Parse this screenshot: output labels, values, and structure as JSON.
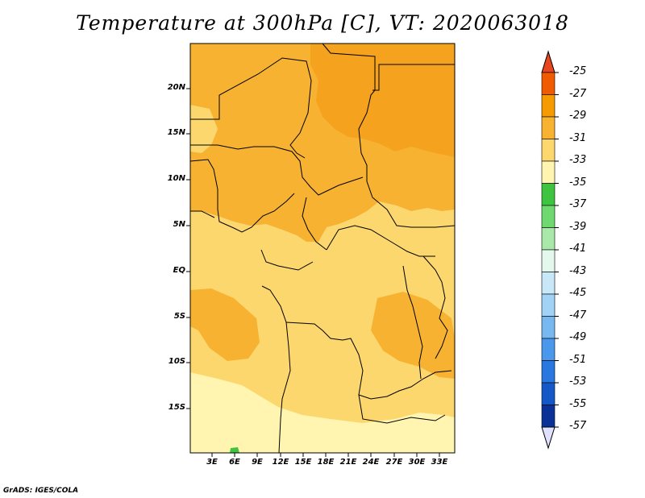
{
  "title": "Temperature at 300hPa [C], VT: 2020063018",
  "credit": "GrADS: IGES/COLA",
  "lat_labels": [
    "20N",
    "15N",
    "10N",
    "5N",
    "EQ",
    "5S",
    "10S",
    "15S"
  ],
  "lon_labels": [
    "3E",
    "6E",
    "9E",
    "12E",
    "15E",
    "18E",
    "21E",
    "24E",
    "27E",
    "30E",
    "33E"
  ],
  "colorbar": {
    "levels": [
      "-25",
      "-27",
      "-29",
      "-31",
      "-33",
      "-35",
      "-37",
      "-39",
      "-41",
      "-43",
      "-45",
      "-47",
      "-49",
      "-51",
      "-53",
      "-55",
      "-57"
    ],
    "colors": [
      "#f05a00",
      "#f59a00",
      "#f7b232",
      "#fcd76e",
      "#fff5b0",
      "#3ec43e",
      "#6ed96e",
      "#a8e8a8",
      "#e4f8ee",
      "#c8e8f8",
      "#a2d2f6",
      "#78b8f0",
      "#4a98ec",
      "#2878e0",
      "#1458c8",
      "#0a3296"
    ],
    "top_color": "#e8461e",
    "bottom_color": "#e0e0ff"
  },
  "map_colors": {
    "c29": "#f5a21e",
    "c31": "#f7b232",
    "c33": "#fcd76e",
    "c35": "#fff5b0",
    "c37": "#3ec43e"
  }
}
